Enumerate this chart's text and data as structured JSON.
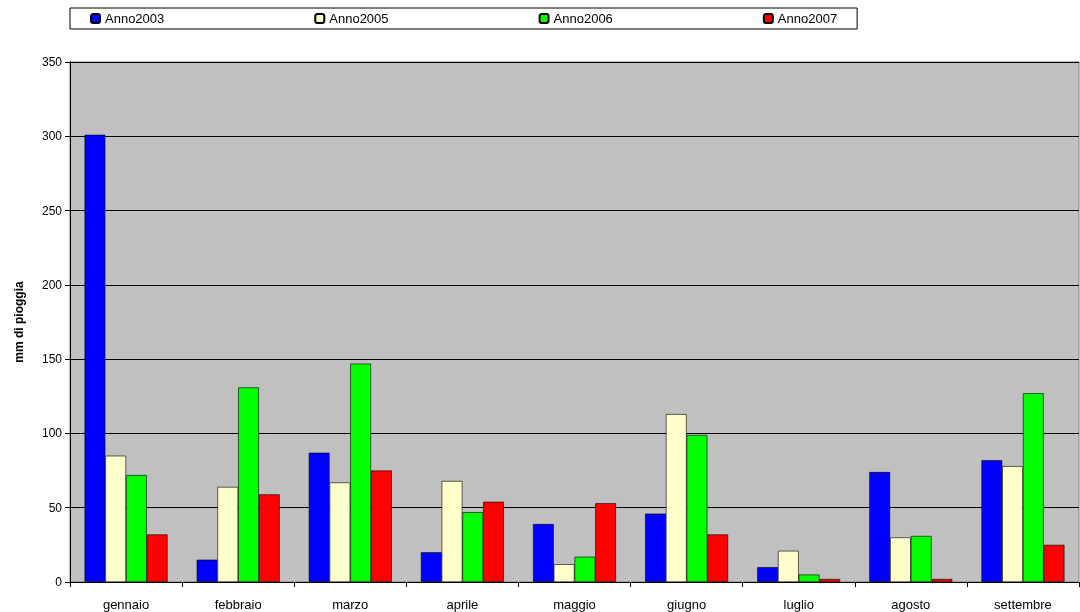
{
  "chart_data": {
    "type": "bar",
    "ylabel": "mm di pioggia",
    "categories": [
      "gennaio",
      "febbraio",
      "marzo",
      "aprile",
      "maggio",
      "giugno",
      "luglio",
      "agosto",
      "settembre"
    ],
    "series": [
      {
        "name": "Anno2003",
        "color": "#0000ff",
        "values": [
          301,
          15,
          87,
          20,
          39,
          46,
          10,
          74,
          82
        ]
      },
      {
        "name": "Anno2005",
        "color": "#ffffcc",
        "values": [
          85,
          64,
          67,
          68,
          12,
          113,
          21,
          30,
          78
        ]
      },
      {
        "name": "Anno2006",
        "color": "#00ff00",
        "values": [
          72,
          131,
          147,
          47,
          17,
          99,
          5,
          31,
          127
        ]
      },
      {
        "name": "Anno2007",
        "color": "#ff0000",
        "values": [
          32,
          59,
          75,
          54,
          53,
          32,
          2,
          2,
          25
        ]
      }
    ],
    "ylim": [
      0,
      350
    ],
    "yticks": [
      0,
      50,
      100,
      150,
      200,
      250,
      300,
      350
    ],
    "grid": "y",
    "legend": "top"
  }
}
